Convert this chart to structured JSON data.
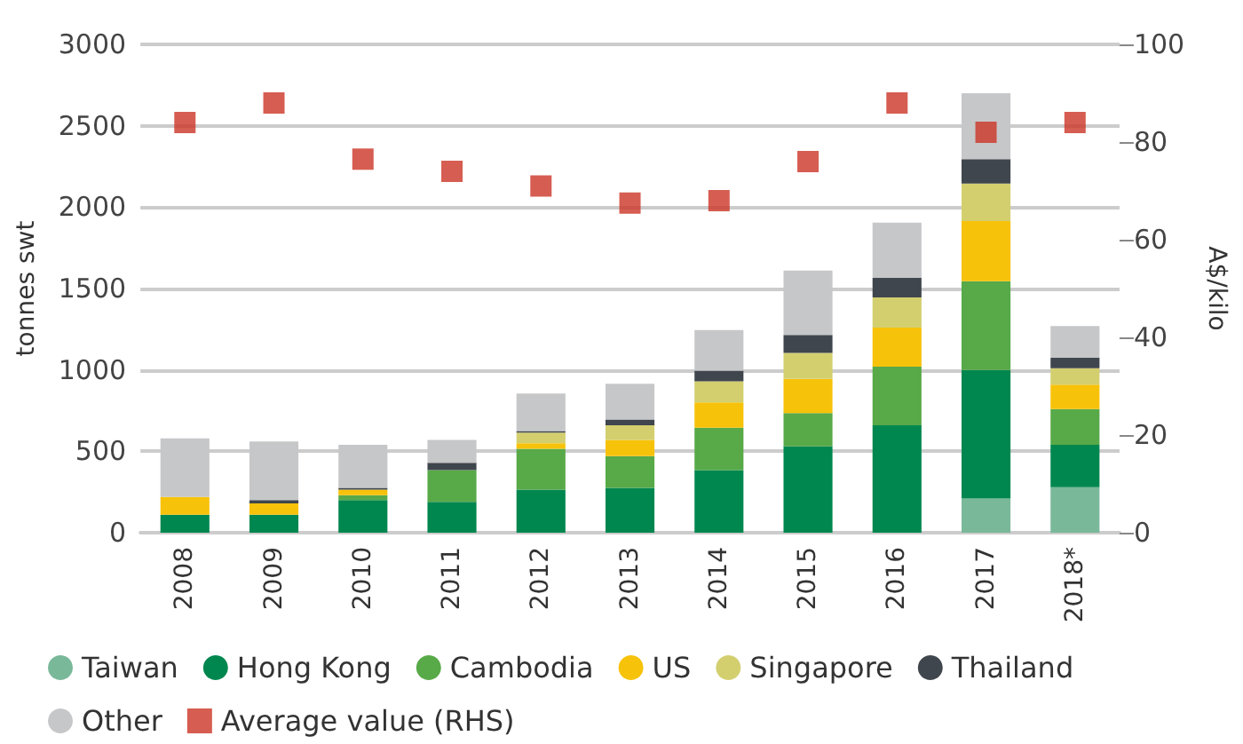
{
  "chart_data": {
    "type": "bar",
    "stacked": true,
    "ylabel": "tonnes swt",
    "y2label": "A$/kilo",
    "categories": [
      "2008",
      "2009",
      "2010",
      "2011",
      "2012",
      "2013",
      "2014",
      "2015",
      "2016",
      "2017",
      "2018*"
    ],
    "series": [
      {
        "name": "Taiwan",
        "color": "#7ab89a",
        "values": [
          0,
          0,
          0,
          0,
          0,
          0,
          0,
          0,
          0,
          210,
          280
        ]
      },
      {
        "name": "Hong Kong",
        "color": "#00874f",
        "values": [
          110,
          110,
          200,
          190,
          265,
          275,
          385,
          530,
          660,
          790,
          260
        ]
      },
      {
        "name": "Cambodia",
        "color": "#58a948",
        "values": [
          0,
          0,
          30,
          195,
          250,
          195,
          260,
          205,
          360,
          545,
          220
        ]
      },
      {
        "name": "US",
        "color": "#f7c20a",
        "values": [
          110,
          70,
          35,
          0,
          35,
          100,
          155,
          210,
          240,
          370,
          150
        ]
      },
      {
        "name": "Singapore",
        "color": "#d3cf6f",
        "values": [
          0,
          0,
          0,
          0,
          65,
          90,
          130,
          160,
          185,
          230,
          100
        ]
      },
      {
        "name": "Thailand",
        "color": "#40464d",
        "values": [
          0,
          20,
          10,
          45,
          10,
          35,
          65,
          110,
          120,
          150,
          65
        ]
      },
      {
        "name": "Other",
        "color": "#c6c7c9",
        "values": [
          360,
          360,
          265,
          140,
          230,
          220,
          250,
          395,
          340,
          405,
          195
        ]
      },
      {
        "name": "Average value (RHS)",
        "type": "scatter",
        "axis": "y2",
        "marker": "square",
        "color": "#cc3526",
        "values": [
          84,
          88,
          76.5,
          74,
          71,
          67.5,
          68,
          76,
          88,
          82,
          84
        ]
      }
    ],
    "ylim": [
      0,
      3000
    ],
    "yticks": [
      0,
      500,
      1000,
      1500,
      2000,
      2500,
      3000
    ],
    "y2lim": [
      0,
      100
    ],
    "y2ticks": [
      0,
      20,
      40,
      60,
      80,
      100
    ],
    "grid": "y",
    "legend": "bottom"
  }
}
